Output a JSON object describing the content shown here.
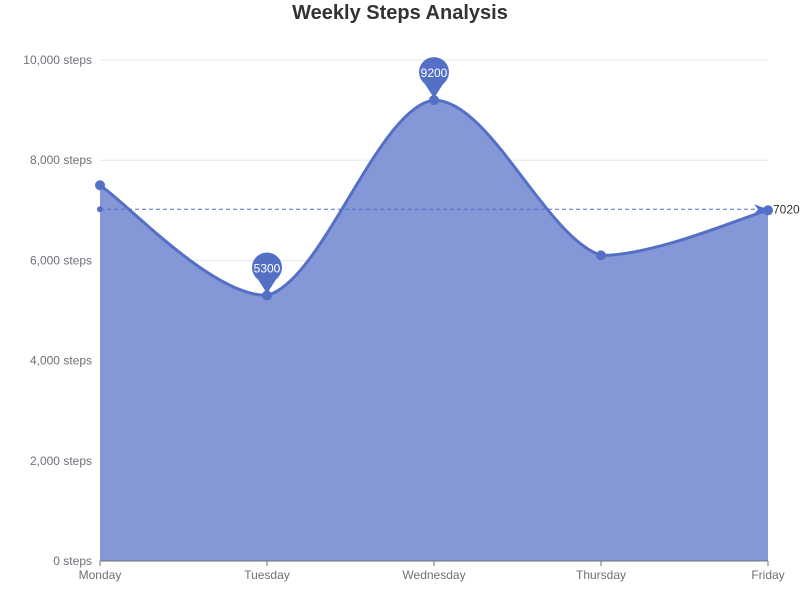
{
  "chart_data": {
    "type": "area",
    "title": "Weekly Steps Analysis",
    "categories": [
      "Monday",
      "Tuesday",
      "Wednesday",
      "Thursday",
      "Friday"
    ],
    "series": [
      {
        "values": [
          7500,
          5300,
          9200,
          6100,
          7000
        ],
        "color": "#5470c6",
        "area_color": "#8597d6",
        "smooth": true
      }
    ],
    "ylim": [
      0,
      10000
    ],
    "y_ticks": [
      0,
      2000,
      4000,
      6000,
      8000,
      10000
    ],
    "y_tick_labels": [
      "0 steps",
      "2,000 steps",
      "4,000 steps",
      "6,000 steps",
      "8,000 steps",
      "10,000 steps"
    ],
    "grid": true,
    "mark_points": [
      {
        "category": "Wednesday",
        "value": 9200,
        "label": "9200"
      },
      {
        "category": "Tuesday",
        "value": 5300,
        "label": "5300"
      }
    ],
    "mark_line": {
      "type": "average",
      "value": 7020,
      "label": "7020"
    }
  }
}
